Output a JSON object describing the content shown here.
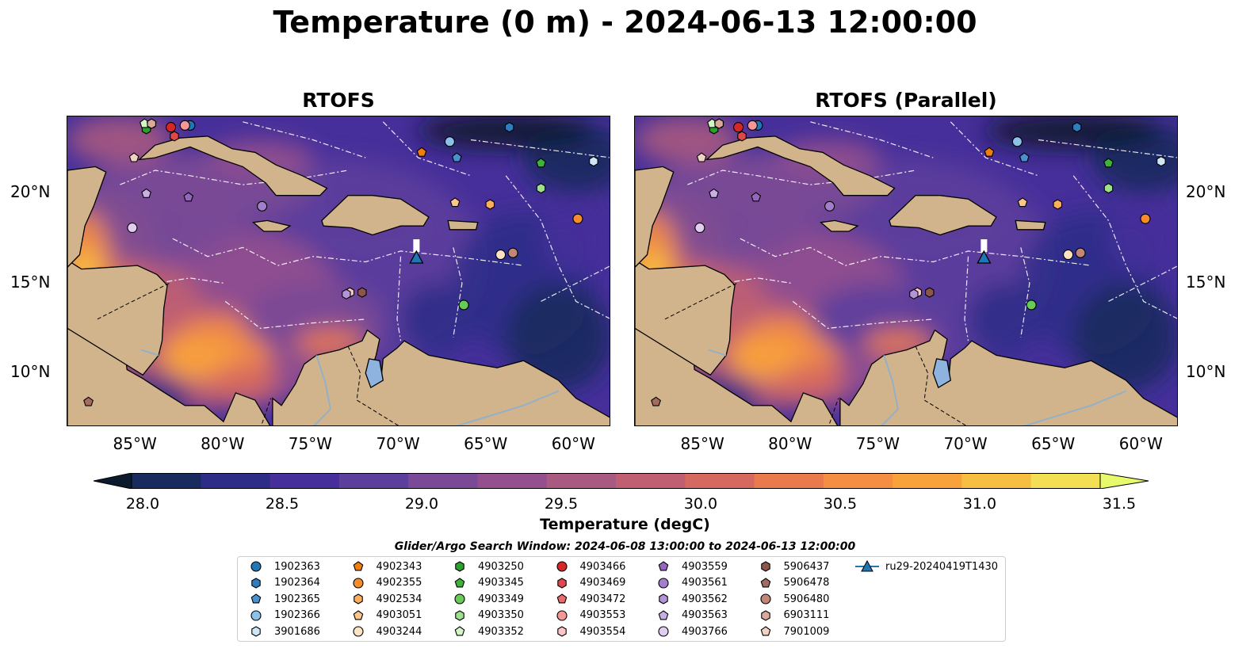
{
  "suptitle": "Temperature (0 m) - 2024-06-13 12:00:00",
  "panels": [
    {
      "title": "RTOFS"
    },
    {
      "title": "RTOFS (Parallel)"
    }
  ],
  "axes": {
    "lon_ticks": [
      "85°W",
      "80°W",
      "75°W",
      "70°W",
      "65°W",
      "60°W"
    ],
    "lat_ticks": [
      "20°N",
      "15°N",
      "10°N"
    ],
    "extent": {
      "lon_min": -89,
      "lon_max": -58,
      "lat_min": 7,
      "lat_max": 24.3
    }
  },
  "colorbar": {
    "label": "Temperature (degC)",
    "ticks": [
      "28.0",
      "28.5",
      "29.0",
      "29.5",
      "30.0",
      "30.5",
      "31.0",
      "31.5"
    ],
    "min": 28.0,
    "max": 31.5,
    "extend": "both",
    "colors": [
      "#0c1a2e",
      "#182a5e",
      "#2d2d88",
      "#462f9a",
      "#5c3f9c",
      "#7a4a96",
      "#934f8e",
      "#a95a80",
      "#c05f72",
      "#d6695f",
      "#e97a4e",
      "#f58d42",
      "#f7a23b",
      "#f7bf42",
      "#f2df54",
      "#e8fa6c"
    ]
  },
  "search_window": "Glider/Argo Search Window: 2024-06-08 13:00:00 to 2024-06-13 12:00:00",
  "legend": [
    {
      "label": "1902363",
      "marker": "circle",
      "color": "#1f77b4"
    },
    {
      "label": "1902364",
      "marker": "hexagon",
      "color": "#2f7dbf"
    },
    {
      "label": "1902365",
      "marker": "pentagon",
      "color": "#4a8fd0"
    },
    {
      "label": "1902366",
      "marker": "circle",
      "color": "#8cc2ea"
    },
    {
      "label": "3901686",
      "marker": "hexagon",
      "color": "#cfe6f7"
    },
    {
      "label": "4902343",
      "marker": "pentagon",
      "color": "#f07f0e"
    },
    {
      "label": "4902355",
      "marker": "circle",
      "color": "#f68c2c"
    },
    {
      "label": "4902534",
      "marker": "hexagon",
      "color": "#fbae5e"
    },
    {
      "label": "4903051",
      "marker": "pentagon",
      "color": "#fcc58a"
    },
    {
      "label": "4903244",
      "marker": "circle",
      "color": "#fde2c4"
    },
    {
      "label": "4903250",
      "marker": "hexagon",
      "color": "#2c9f2c"
    },
    {
      "label": "4903345",
      "marker": "pentagon",
      "color": "#3cb43c"
    },
    {
      "label": "4903349",
      "marker": "circle",
      "color": "#66cc55"
    },
    {
      "label": "4903350",
      "marker": "hexagon",
      "color": "#9fe08f"
    },
    {
      "label": "4903352",
      "marker": "pentagon",
      "color": "#d4f5c8"
    },
    {
      "label": "4903466",
      "marker": "circle",
      "color": "#d62728"
    },
    {
      "label": "4903469",
      "marker": "hexagon",
      "color": "#e0474a"
    },
    {
      "label": "4903472",
      "marker": "pentagon",
      "color": "#ec6b6c"
    },
    {
      "label": "4903553",
      "marker": "circle",
      "color": "#f59797"
    },
    {
      "label": "4903554",
      "marker": "hexagon",
      "color": "#fbc6c4"
    },
    {
      "label": "4903559",
      "marker": "pentagon",
      "color": "#9467bd"
    },
    {
      "label": "4903561",
      "marker": "circle",
      "color": "#a37fcb"
    },
    {
      "label": "4903562",
      "marker": "hexagon",
      "color": "#b394d6"
    },
    {
      "label": "4903563",
      "marker": "pentagon",
      "color": "#c8aee3"
    },
    {
      "label": "4903766",
      "marker": "circle",
      "color": "#e0cdf1"
    },
    {
      "label": "5906437",
      "marker": "hexagon",
      "color": "#8c564b"
    },
    {
      "label": "5906478",
      "marker": "pentagon",
      "color": "#a26d5f"
    },
    {
      "label": "5906480",
      "marker": "circle",
      "color": "#c08878"
    },
    {
      "label": "6903111",
      "marker": "hexagon",
      "color": "#d9a99b"
    },
    {
      "label": "7901009",
      "marker": "pentagon",
      "color": "#f3d2c6"
    },
    {
      "label": "ru29-20240419T1430",
      "marker": "triangle-line",
      "color": "#1f77b4"
    }
  ],
  "floats": [
    {
      "id": "1902363",
      "lon": -82.0,
      "lat": 23.8
    },
    {
      "id": "1902364",
      "lon": -63.8,
      "lat": 23.7
    },
    {
      "id": "1902365",
      "lon": -66.8,
      "lat": 22.0
    },
    {
      "id": "1902366",
      "lon": -67.2,
      "lat": 22.9
    },
    {
      "id": "3901686",
      "lon": -59.0,
      "lat": 21.8
    },
    {
      "id": "4902343",
      "lon": -68.8,
      "lat": 22.3
    },
    {
      "id": "4902355",
      "lon": -59.9,
      "lat": 18.6
    },
    {
      "id": "4902534",
      "lon": -64.9,
      "lat": 19.4
    },
    {
      "id": "4903051",
      "lon": -66.9,
      "lat": 19.5
    },
    {
      "id": "4903244",
      "lon": -64.3,
      "lat": 16.6
    },
    {
      "id": "4903250",
      "lon": -84.5,
      "lat": 23.6
    },
    {
      "id": "4903345",
      "lon": -62.0,
      "lat": 21.7
    },
    {
      "id": "4903349",
      "lon": -66.4,
      "lat": 13.8
    },
    {
      "id": "4903350",
      "lon": -62.0,
      "lat": 20.3
    },
    {
      "id": "4903352",
      "lon": -84.6,
      "lat": 23.9
    },
    {
      "id": "4903466",
      "lon": -83.1,
      "lat": 23.7
    },
    {
      "id": "4903469",
      "lon": -82.9,
      "lat": 23.2
    },
    {
      "id": "4903472",
      "lon": -84.2,
      "lat": 23.9
    },
    {
      "id": "4903553",
      "lon": -82.3,
      "lat": 23.8
    },
    {
      "id": "4903554",
      "lon": -72.9,
      "lat": 14.5
    },
    {
      "id": "4903559",
      "lon": -82.1,
      "lat": 19.8
    },
    {
      "id": "4903561",
      "lon": -77.9,
      "lat": 19.3
    },
    {
      "id": "4903562",
      "lon": -73.1,
      "lat": 14.4
    },
    {
      "id": "4903563",
      "lon": -84.5,
      "lat": 20.0
    },
    {
      "id": "4903766",
      "lon": -85.3,
      "lat": 18.1
    },
    {
      "id": "5906437",
      "lon": -72.2,
      "lat": 14.5
    },
    {
      "id": "5906478",
      "lon": -87.8,
      "lat": 8.4
    },
    {
      "id": "5906480",
      "lon": -63.6,
      "lat": 16.7
    },
    {
      "id": "6903111",
      "lon": -84.2,
      "lat": 23.9
    },
    {
      "id": "7901009",
      "lon": -85.2,
      "lat": 22.0
    }
  ],
  "glider": {
    "id": "ru29-20240419T1430",
    "lon": -69.1,
    "lat": 16.4
  }
}
